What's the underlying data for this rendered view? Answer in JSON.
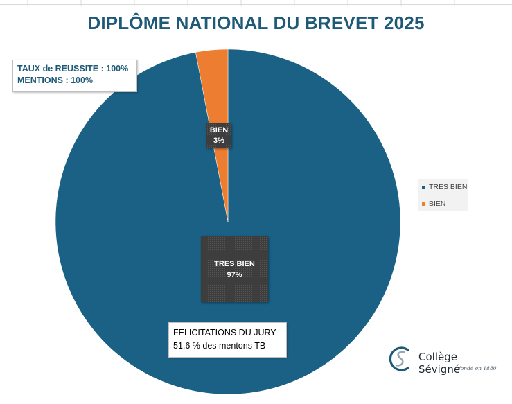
{
  "chart_data": {
    "type": "pie",
    "title": "DIPLÔME NATIONAL DU BREVET 2025",
    "slices": [
      {
        "label": "TRES BIEN",
        "value": 97,
        "display": "97%",
        "color": "#1a6185"
      },
      {
        "label": "BIEN",
        "value": 3,
        "display": "3%",
        "color": "#ed7d31"
      }
    ],
    "legend": {
      "position": "right",
      "entries": [
        "TRES BIEN",
        "BIEN"
      ]
    },
    "start_angle_deg": 0,
    "direction": "clockwise"
  },
  "info_box_top": {
    "line1": "TAUX de REUSSITE : 100%",
    "line2": "MENTIONS : 100%"
  },
  "info_box_bottom": {
    "line1": "FELICITATIONS DU JURY",
    "line2": "51,6 % des mentons TB"
  },
  "logo": {
    "name": "Collège Sévigné",
    "tagline": "fondé en 1880",
    "primary_color": "#1e5a78",
    "secondary_color": "#b0b8c0"
  }
}
